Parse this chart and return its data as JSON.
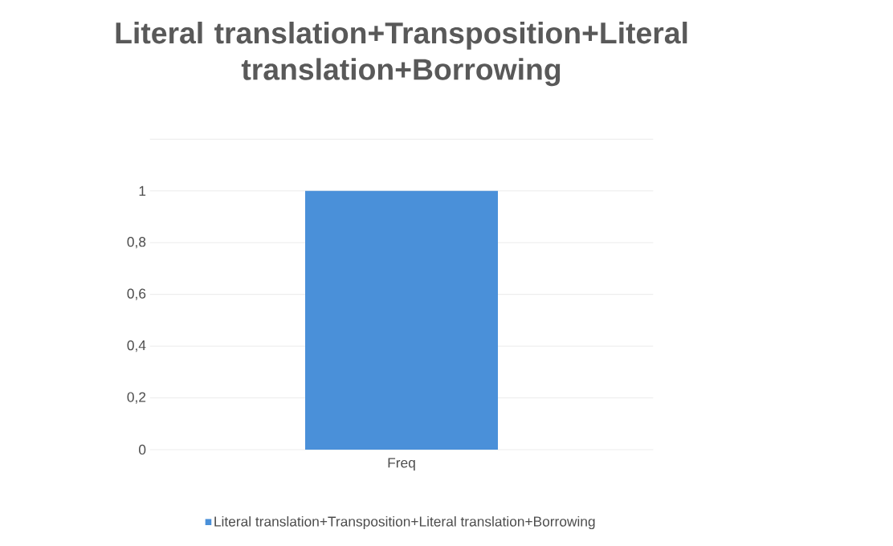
{
  "chart_data": {
    "type": "bar",
    "title": "Literal translation+Transposition+Literal translation+Borrowing",
    "categories": [
      "Freq"
    ],
    "series": [
      {
        "name": "Literal translation+Transposition+Literal translation+Borrowing",
        "color": "#4a90d9",
        "values": [
          1
        ]
      }
    ],
    "ylim": [
      0,
      1.2
    ],
    "yticks": [
      0,
      {
        "value": 0.2,
        "label": "0,2"
      },
      {
        "value": 0.4,
        "label": "0,4"
      },
      {
        "value": 0.6,
        "label": "0,6"
      },
      {
        "value": 0.8,
        "label": "0,8"
      },
      1,
      {
        "value": 1.2,
        "label": null
      }
    ],
    "grid": "y",
    "legend": "bottom"
  }
}
